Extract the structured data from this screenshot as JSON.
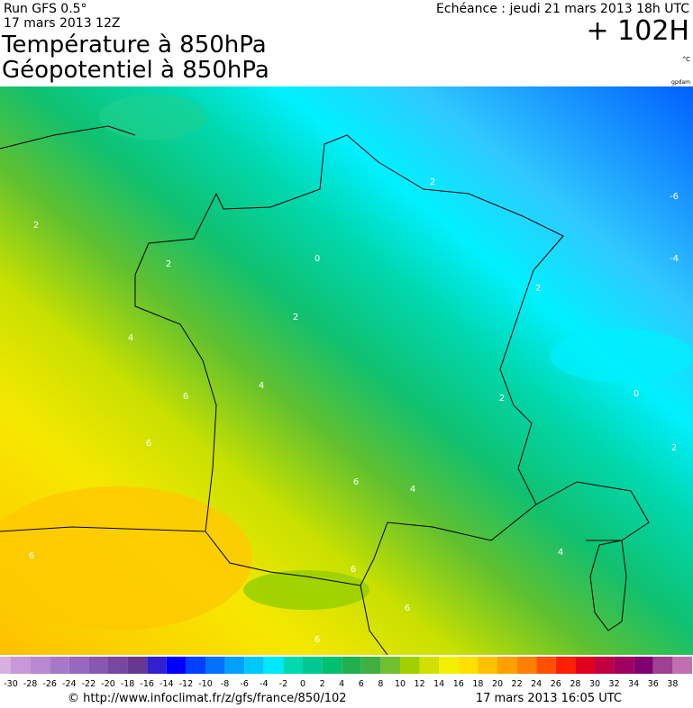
{
  "header": {
    "run": "Run GFS 0.5°",
    "run_date": "17 mars 2013 12Z",
    "title": "Température à 850hPa",
    "subtitle": "Géopotentiel à 850hPa",
    "valid": "Echéance : jeudi 21 mars 2013 18h UTC",
    "lead": "+ 102H",
    "unit": "°C",
    "contour_unit": "gpdam"
  },
  "map": {
    "contour_labels": [
      2,
      2,
      0,
      2,
      -6,
      -4,
      2,
      2,
      4,
      4,
      6,
      6,
      2,
      0,
      2,
      4,
      6,
      4,
      6,
      6,
      6,
      6
    ]
  },
  "colorbar": {
    "labels": [
      -30,
      -28,
      -26,
      -24,
      -22,
      -20,
      -18,
      -16,
      -14,
      -12,
      -10,
      -8,
      -6,
      -4,
      -2,
      0,
      2,
      4,
      6,
      8,
      10,
      12,
      14,
      16,
      18,
      20,
      22,
      24,
      26,
      28,
      30,
      32,
      34,
      36,
      38
    ]
  },
  "footer": {
    "source": "© http://www.infoclimat.fr/z/gfs/france/850/102",
    "generated": "17 mars 2013 16:05 UTC"
  }
}
